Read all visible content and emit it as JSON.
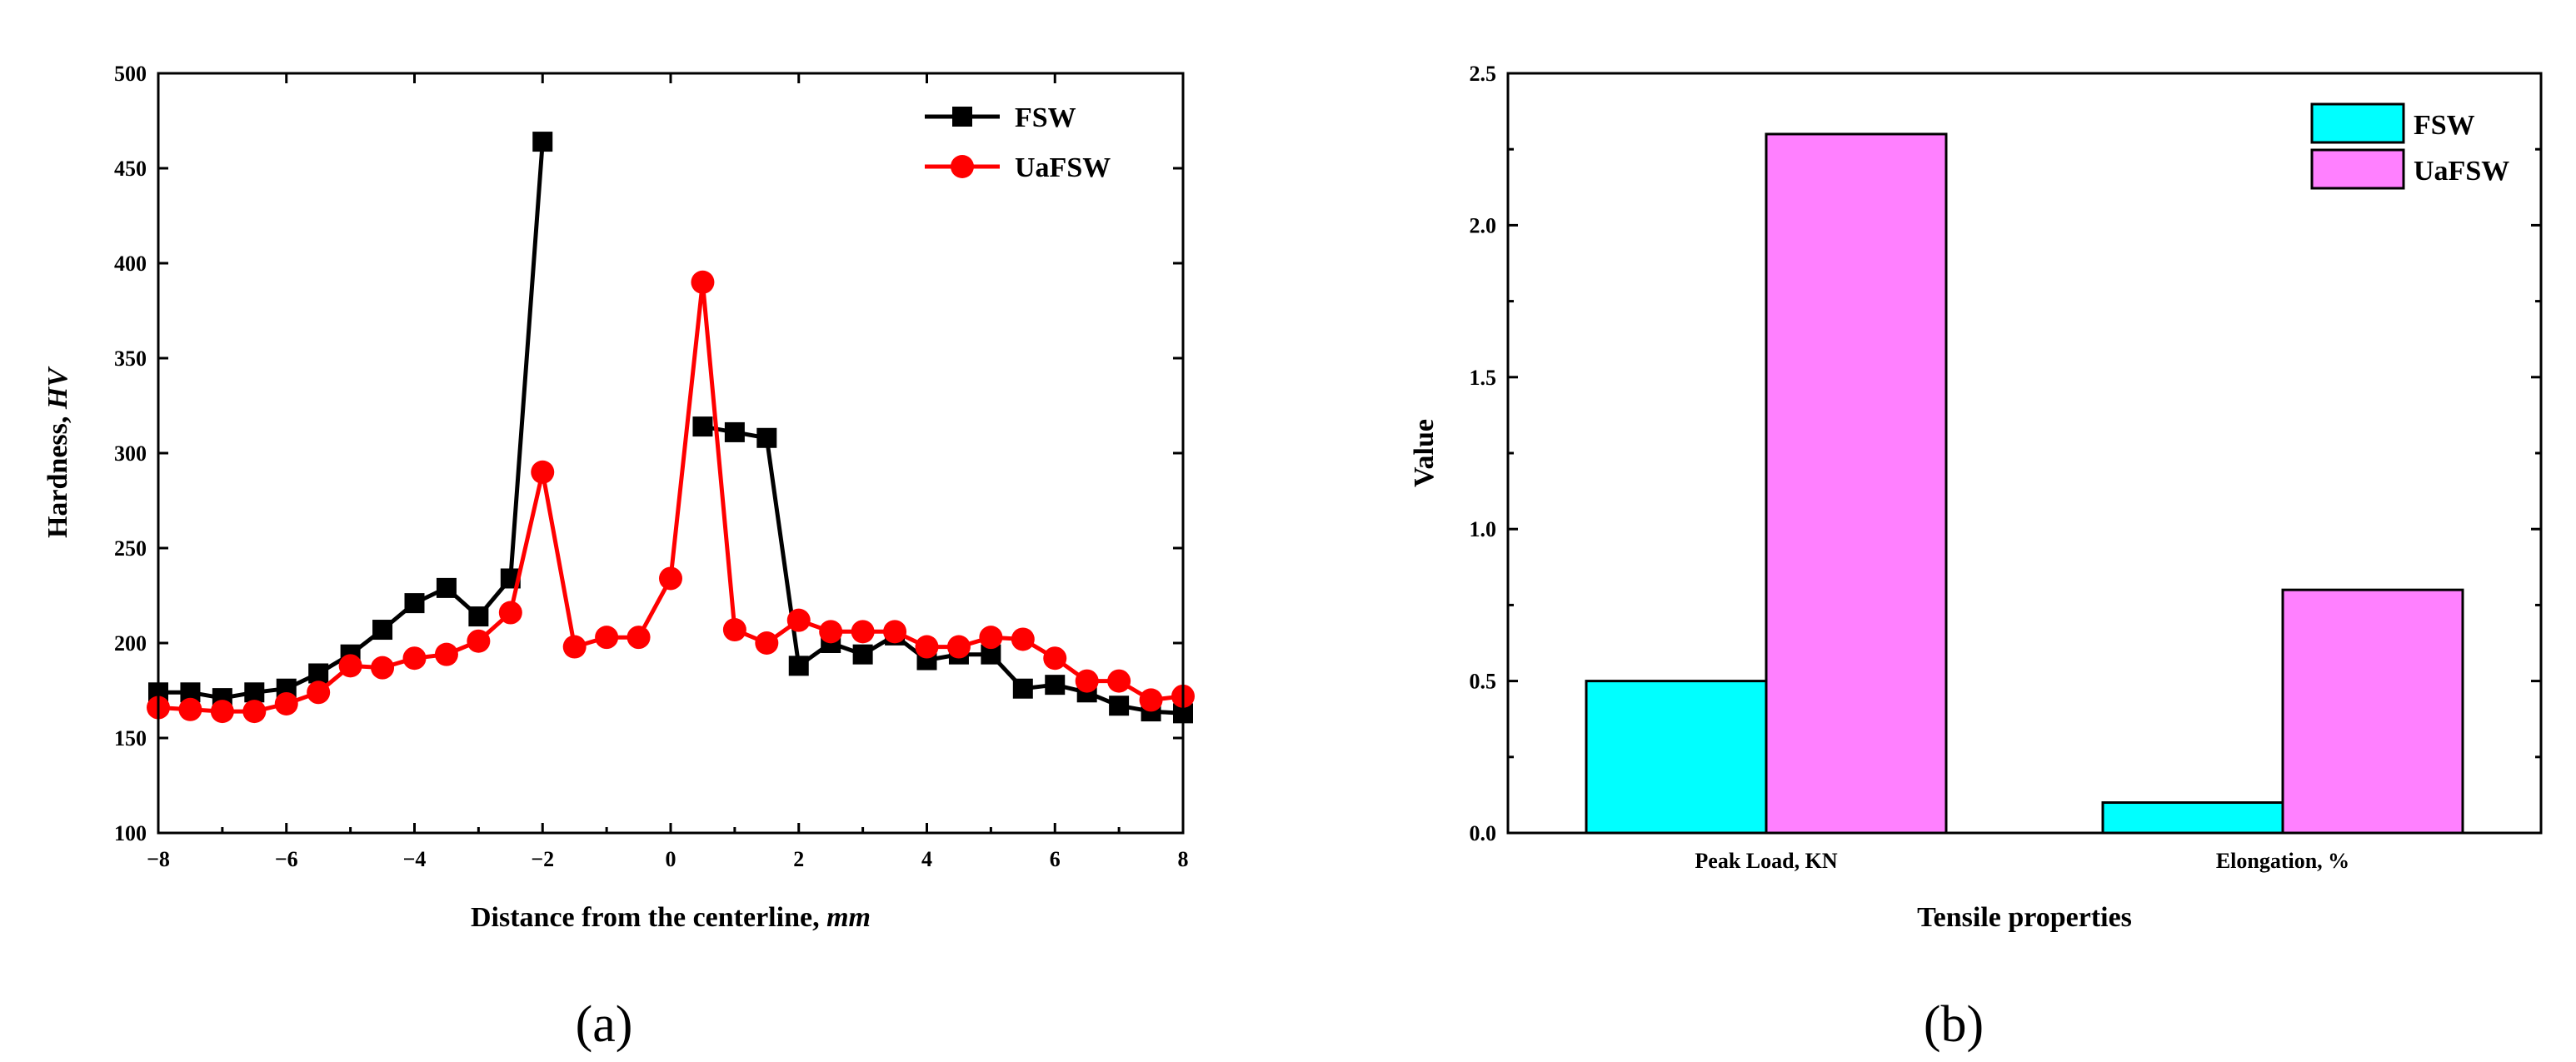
{
  "chart_data": [
    {
      "type": "line",
      "panel_label": "(a)",
      "title": "",
      "xlabel": {
        "text": "Distance from the centerline, ",
        "unit": "mm"
      },
      "ylabel": {
        "text": "Hardness, ",
        "unit": "HV"
      },
      "xlim": [
        -8,
        8
      ],
      "ylim": [
        100,
        500
      ],
      "xticks": [
        -8,
        -6,
        -4,
        -2,
        0,
        2,
        4,
        6,
        8
      ],
      "xtick_labels": [
        "−8",
        "−6",
        "−4",
        "−2",
        "0",
        "2",
        "4",
        "6",
        "8"
      ],
      "yticks": [
        100,
        150,
        200,
        250,
        300,
        350,
        400,
        450,
        500
      ],
      "legend_position": "top-right",
      "series": [
        {
          "name": "FSW",
          "color": "#000000",
          "marker": "square",
          "segments": [
            [
              [
                -8,
                174
              ],
              [
                -7.5,
                174
              ],
              [
                -7,
                171
              ],
              [
                -6.5,
                174
              ],
              [
                -6,
                176
              ],
              [
                -5.5,
                184
              ],
              [
                -5,
                194
              ],
              [
                -4.5,
                207
              ],
              [
                -4,
                221
              ],
              [
                -3.5,
                229
              ],
              [
                -3,
                214
              ],
              [
                -2.5,
                234
              ],
              [
                -2,
                464
              ]
            ],
            [
              [
                0.5,
                314
              ],
              [
                1,
                311
              ],
              [
                1.5,
                308
              ],
              [
                2,
                188
              ],
              [
                2.5,
                200
              ],
              [
                3,
                194
              ],
              [
                3.5,
                204
              ],
              [
                4,
                191
              ],
              [
                4.5,
                194
              ],
              [
                5,
                194
              ],
              [
                5.5,
                176
              ],
              [
                6,
                178
              ],
              [
                6.5,
                174
              ],
              [
                7,
                167
              ],
              [
                7.5,
                164
              ],
              [
                8,
                163
              ]
            ]
          ]
        },
        {
          "name": "UaFSW",
          "color": "#ff0000",
          "marker": "circle",
          "segments": [
            [
              [
                -8,
                166
              ],
              [
                -7.5,
                165
              ],
              [
                -7,
                164
              ],
              [
                -6.5,
                164
              ],
              [
                -6,
                168
              ],
              [
                -5.5,
                174
              ],
              [
                -5,
                188
              ],
              [
                -4.5,
                187
              ],
              [
                -4,
                192
              ],
              [
                -3.5,
                194
              ],
              [
                -3,
                201
              ],
              [
                -2.5,
                216
              ],
              [
                -2,
                290
              ],
              [
                -1.5,
                198
              ],
              [
                -1,
                203
              ],
              [
                -0.5,
                203
              ],
              [
                0,
                234
              ],
              [
                0.5,
                390
              ],
              [
                1,
                207
              ],
              [
                1.5,
                200
              ],
              [
                2,
                212
              ],
              [
                2.5,
                206
              ],
              [
                3,
                206
              ],
              [
                3.5,
                206
              ],
              [
                4,
                198
              ],
              [
                4.5,
                198
              ],
              [
                5,
                203
              ],
              [
                5.5,
                202
              ],
              [
                6,
                192
              ],
              [
                6.5,
                180
              ],
              [
                7,
                180
              ],
              [
                7.5,
                170
              ],
              [
                8,
                172
              ]
            ]
          ]
        }
      ]
    },
    {
      "type": "bar",
      "panel_label": "(b)",
      "title": "",
      "xlabel": "Tensile properties",
      "ylabel": "Value",
      "ylim": [
        0,
        2.5
      ],
      "yticks": [
        "0.0",
        "0.5",
        "1.0",
        "1.5",
        "2.0",
        "2.5"
      ],
      "categories": [
        "Peak Load, KN",
        "Elongation, %"
      ],
      "legend_position": "top-right",
      "series": [
        {
          "name": "FSW",
          "color": "#00ffff",
          "values": [
            0.5,
            0.1
          ]
        },
        {
          "name": "UaFSW",
          "color": "#ff80ff",
          "values": [
            2.3,
            0.8
          ]
        }
      ]
    }
  ]
}
